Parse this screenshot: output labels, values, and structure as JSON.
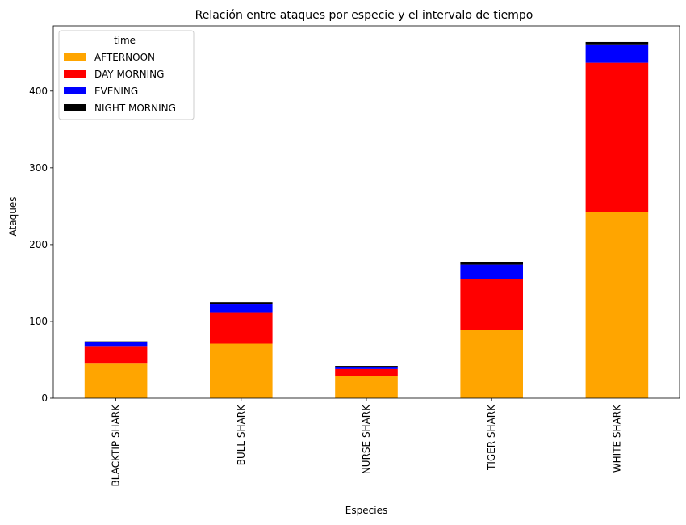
{
  "chart_data": {
    "type": "bar",
    "stacked": true,
    "title": "Relación entre ataques por especie y el intervalo de tiempo",
    "xlabel": "Especies",
    "ylabel": "Ataques",
    "ylim": [
      0,
      485
    ],
    "yticks": [
      0,
      100,
      200,
      300,
      400
    ],
    "categories": [
      "BLACKTIP SHARK",
      "BULL SHARK",
      "NURSE SHARK",
      "TIGER SHARK",
      "WHITE SHARK"
    ],
    "legend_title": "time",
    "legend_position": "top-left",
    "grid": false,
    "series": [
      {
        "name": "AFTERNOON",
        "color": "#ffa500",
        "values": [
          45,
          71,
          29,
          89,
          242
        ]
      },
      {
        "name": "DAY MORNING",
        "color": "#ff0000",
        "values": [
          22,
          41,
          9,
          66,
          195
        ]
      },
      {
        "name": "EVENING",
        "color": "#0000ff",
        "values": [
          6,
          10,
          3,
          19,
          23
        ]
      },
      {
        "name": "NIGHT MORNING",
        "color": "#000000",
        "values": [
          1,
          3,
          1,
          3,
          4
        ]
      }
    ]
  }
}
